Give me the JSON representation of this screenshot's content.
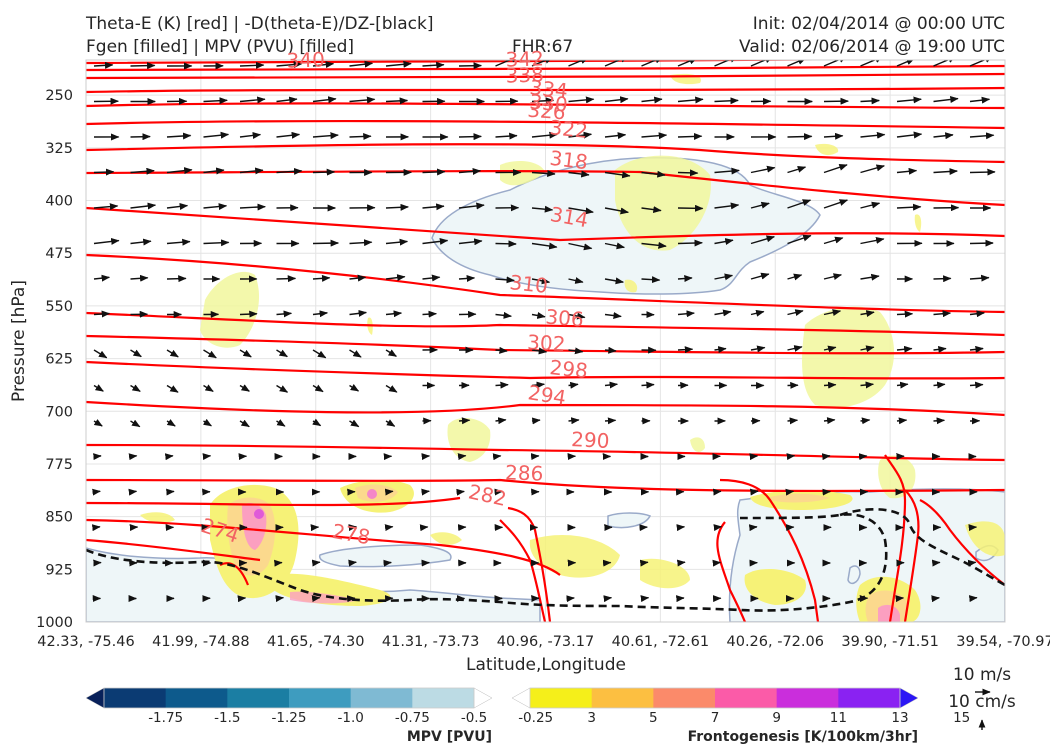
{
  "header": {
    "title_line1": "Theta-E (K) [red] | -D(theta-E)/DZ-[black]",
    "title_line2": "Fgen [filled] | MPV (PVU) [filled]",
    "fhr": "FHR:67",
    "init": "Init: 02/04/2014 @ 00:00 UTC",
    "valid": "Valid: 02/06/2014 @ 19:00 UTC"
  },
  "chart_data": {
    "type": "cross-section",
    "ylabel": "Pressure [hPa]",
    "xlabel": "Latitude,Longitude",
    "y_axis": {
      "inverted": true,
      "ylim": [
        200,
        1000
      ],
      "ticks": [
        "250",
        "325",
        "400",
        "475",
        "550",
        "625",
        "700",
        "775",
        "850",
        "925",
        "1000"
      ]
    },
    "x_ticks": [
      "42.33, -75.46",
      "41.99, -74.88",
      "41.65, -74.30",
      "41.31, -73.73",
      "40.96, -73.17",
      "40.61, -72.61",
      "40.26, -72.06",
      "39.90, -71.51",
      "39.54, -70.97"
    ],
    "theta_e_contour_labels": [
      "340",
      "342",
      "338",
      "334",
      "330",
      "326",
      "322",
      "318",
      "314",
      "310",
      "306",
      "302",
      "298",
      "294",
      "290",
      "286",
      "282",
      "278",
      "274"
    ],
    "theta_e_color": "#ff0000",
    "label_color": "#f26363",
    "wind_key": {
      "u_label": "10 m/s",
      "w_label": "10 cm/s"
    },
    "mpv_colorbar": {
      "title": "MPV [PVU]",
      "ticks": [
        "-1.75",
        "-1.5",
        "-1.25",
        "-1.0",
        "-0.75",
        "-0.5",
        "-0.25"
      ],
      "colors": [
        "#08215a",
        "#0b3b73",
        "#0d5a8c",
        "#1b7ea3",
        "#3e9cbf",
        "#7fbad3",
        "#bcdbe4",
        "#ffffff"
      ]
    },
    "fgen_colorbar": {
      "title": "Frontogenesis [K/100km/3hr]",
      "ticks": [
        "3",
        "5",
        "7",
        "9",
        "11",
        "13",
        "15"
      ],
      "colors": [
        "#ffffff",
        "#f5ef1a",
        "#fcbf41",
        "#fb8a6a",
        "#fb5ba8",
        "#ca2edc",
        "#8a22f2",
        "#2b16f5"
      ]
    }
  }
}
